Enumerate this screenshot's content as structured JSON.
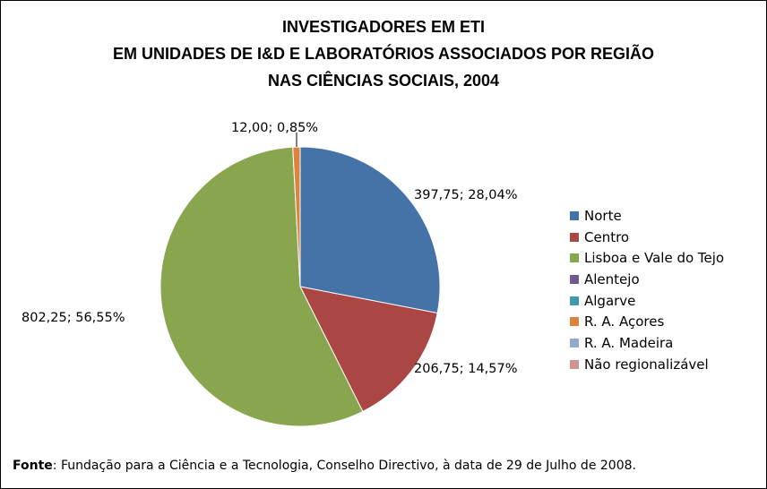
{
  "chart_data": {
    "type": "pie",
    "title": [
      "INVESTIGADORES EM ETI",
      "EM UNIDADES DE I&D E LABORATÓRIOS ASSOCIADOS POR REGIÃO",
      "NAS CIÊNCIAS SOCIAIS, 2004"
    ],
    "categories": [
      "Norte",
      "Centro",
      "Lisboa e Vale do Tejo",
      "Alentejo",
      "Algarve",
      "R. A. Açores",
      "R. A. Madeira",
      "Não regionalizável"
    ],
    "values": [
      397.75,
      206.75,
      802.25,
      0,
      0,
      12.0,
      0,
      0
    ],
    "percentages": [
      28.04,
      14.57,
      56.55,
      0,
      0,
      0.85,
      0,
      0
    ],
    "data_labels": [
      "397,75; 28,04%",
      "206,75; 14,57%",
      "802,25; 56,55%",
      "",
      "",
      "12,00; 0,85%",
      "",
      ""
    ],
    "colors": [
      "#4572A7",
      "#AA4643",
      "#89A54E",
      "#71588F",
      "#4198AF",
      "#DB843D",
      "#93A9CF",
      "#D19392"
    ],
    "legend_position": "right"
  },
  "source": {
    "label": "Fonte",
    "text": ": Fundação para a Ciência e a Tecnologia, Conselho Directivo, à data de 29 de Julho de 2008."
  }
}
